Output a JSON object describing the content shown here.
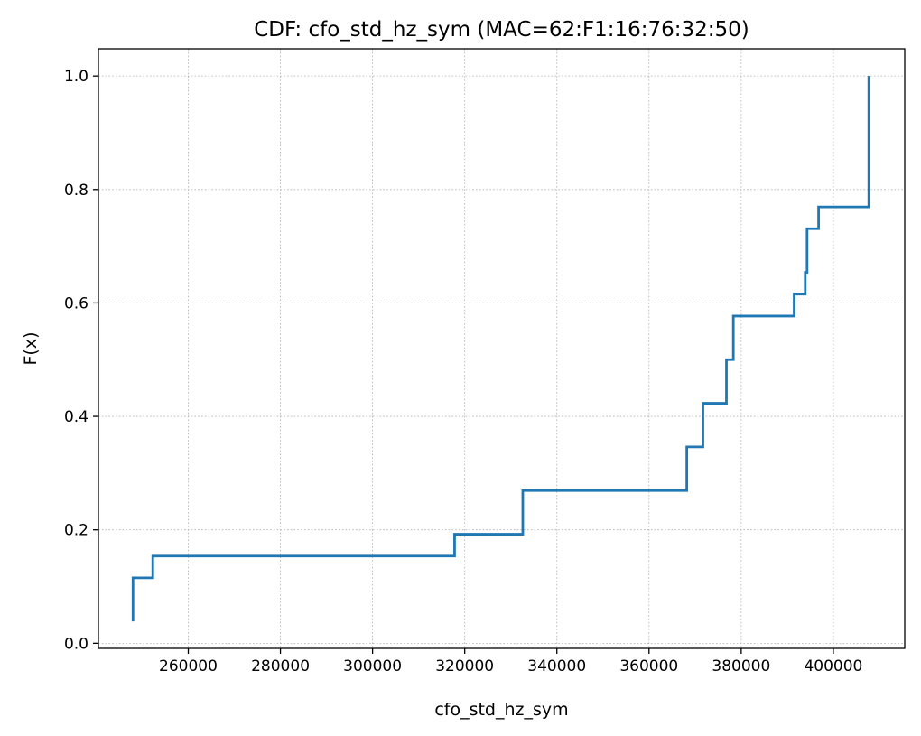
{
  "chart_data": {
    "type": "line",
    "step": "post",
    "title": "CDF: cfo_std_hz_sym (MAC=62:F1:16:76:32:50)",
    "xlabel": "cfo_std_hz_sym",
    "ylabel": "F(x)",
    "xlim": [
      240500,
      415500
    ],
    "ylim": [
      -0.009,
      1.048
    ],
    "xticks": [
      260000,
      280000,
      300000,
      320000,
      340000,
      360000,
      380000,
      400000
    ],
    "yticks": [
      0.0,
      0.2,
      0.4,
      0.6,
      0.8,
      1.0
    ],
    "xtick_labels": [
      "260000",
      "280000",
      "300000",
      "320000",
      "340000",
      "360000",
      "380000",
      "400000"
    ],
    "ytick_labels": [
      "0.0",
      "0.2",
      "0.4",
      "0.6",
      "0.8",
      "1.0"
    ],
    "grid": true,
    "line_color": "#1f77b4",
    "series": [
      {
        "x": [
          248000,
          248000,
          252300,
          317800,
          332600,
          368200,
          371700,
          376800,
          378300,
          391500,
          393900,
          394300,
          396800,
          407700,
          407700
        ],
        "y": [
          0.0385,
          0.1154,
          0.1538,
          0.1923,
          0.2692,
          0.3462,
          0.4231,
          0.5,
          0.5769,
          0.6154,
          0.6538,
          0.7308,
          0.7692,
          0.7692,
          1.0
        ]
      }
    ]
  }
}
